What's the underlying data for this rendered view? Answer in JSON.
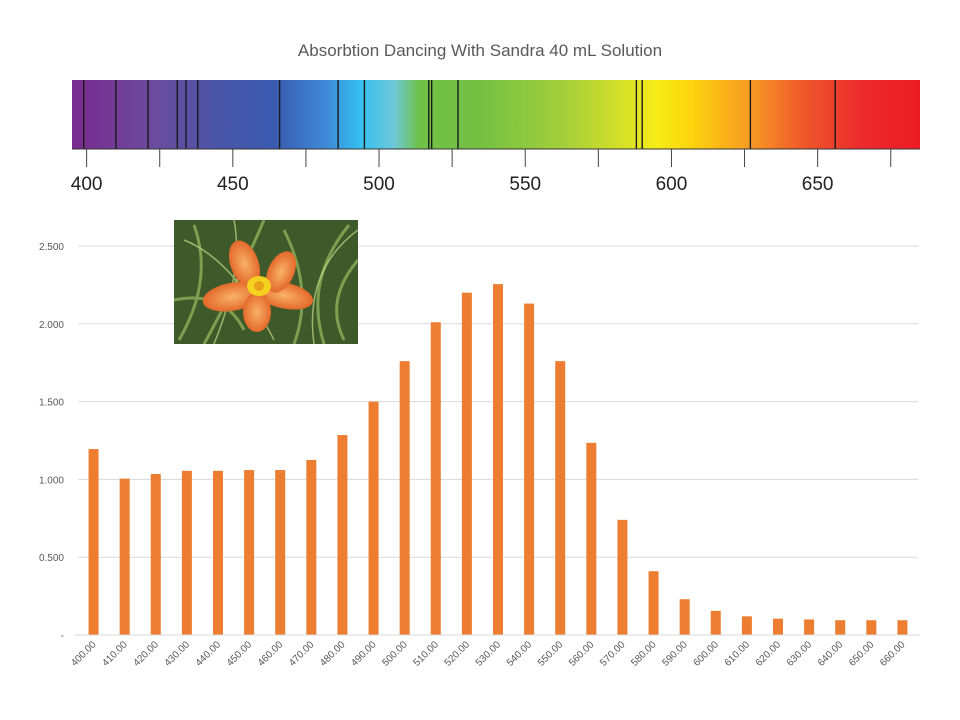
{
  "chart_data": {
    "type": "bar",
    "title": "Absorbtion Dancing With Sandra 40 mL Solution",
    "xlabel": "",
    "ylabel": "",
    "categories": [
      "400.00",
      "410.00",
      "420.00",
      "430.00",
      "440.00",
      "450.00",
      "460.00",
      "470.00",
      "480.00",
      "490.00",
      "500.00",
      "510.00",
      "520.00",
      "530.00",
      "540.00",
      "550.00",
      "560.00",
      "570.00",
      "580.00",
      "590.00",
      "600.00",
      "610.00",
      "620.00",
      "630.00",
      "640.00",
      "650.00",
      "660.00"
    ],
    "values": [
      1.195,
      1.005,
      1.035,
      1.055,
      1.055,
      1.06,
      1.06,
      1.125,
      1.285,
      1.5,
      1.76,
      2.01,
      2.2,
      2.255,
      2.13,
      1.76,
      1.235,
      0.74,
      0.41,
      0.23,
      0.155,
      0.12,
      0.105,
      0.1,
      0.095,
      0.095,
      0.095
    ],
    "ylim": [
      0,
      2.5
    ],
    "yticks": [
      {
        "value": 0,
        "label": "-"
      },
      {
        "value": 0.5,
        "label": "0.500"
      },
      {
        "value": 1.0,
        "label": "1.000"
      },
      {
        "value": 1.5,
        "label": "1.500"
      },
      {
        "value": 2.0,
        "label": "2.000"
      },
      {
        "value": 2.5,
        "label": "2.500"
      }
    ],
    "grid": true,
    "bar_color": "#ED7D31",
    "spectrum": {
      "range": [
        395,
        685
      ],
      "tick_labels": [
        400,
        450,
        500,
        550,
        600,
        650
      ],
      "minor_ticks": [
        425,
        475,
        525,
        575,
        625,
        675
      ],
      "absorption_lines": [
        399,
        410,
        421,
        431,
        434,
        438,
        466,
        486,
        495,
        517,
        518,
        527,
        588,
        590,
        627,
        656
      ]
    }
  },
  "photo": {
    "icon": "orange-daylily-flower-photo"
  }
}
